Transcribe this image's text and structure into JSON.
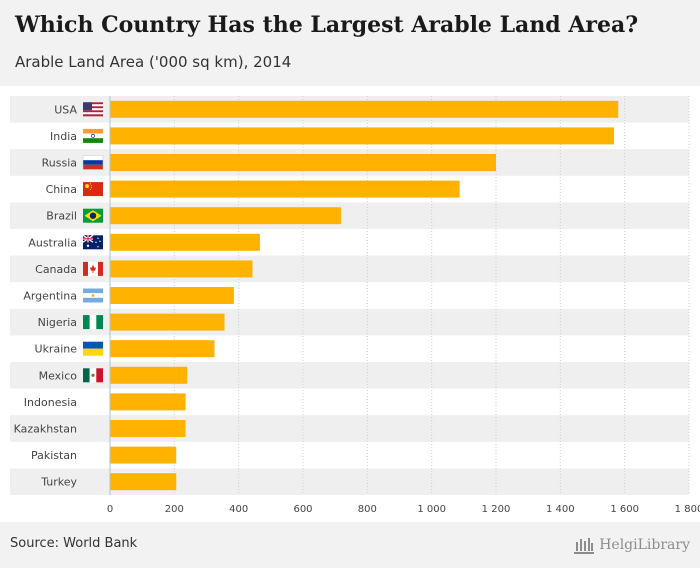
{
  "header": {
    "title": "Which Country Has the Largest Arable Land Area?",
    "subtitle": "Arable Land Area ('000 sq km), 2014"
  },
  "footer": {
    "source": "Source: World Bank",
    "logo_text": "HelgiLibrary"
  },
  "colors": {
    "bar": "#FFB300",
    "band": "#efefef",
    "zero_line": "#9cc8e6",
    "grid": "#d0d0d0"
  },
  "chart_data": {
    "type": "bar",
    "orientation": "horizontal",
    "title": "Which Country Has the Largest Arable Land Area?",
    "subtitle": "Arable Land Area ('000 sq km), 2014",
    "xlabel": "",
    "ylabel": "",
    "xlim": [
      0,
      1800
    ],
    "xticks": [
      0,
      200,
      400,
      600,
      800,
      1000,
      1200,
      1400,
      1600,
      1800
    ],
    "xtick_labels": [
      "0",
      "200",
      "400",
      "600",
      "800",
      "1 000",
      "1 200",
      "1 400",
      "1 600",
      "1 800"
    ],
    "categories": [
      "USA",
      "India",
      "Russia",
      "China",
      "Brazil",
      "Australia",
      "Canada",
      "Argentina",
      "Nigeria",
      "Ukraine",
      "Mexico",
      "Indonesia",
      "Kazakhstan",
      "Pakistan",
      "Turkey"
    ],
    "flags": [
      "us-flag-icon",
      "india-flag-icon",
      "russia-flag-icon",
      "china-flag-icon",
      "brazil-flag-icon",
      "australia-flag-icon",
      "canada-flag-icon",
      "argentina-flag-icon",
      "nigeria-flag-icon",
      "ukraine-flag-icon",
      "mexico-flag-icon",
      "",
      "",
      "",
      ""
    ],
    "values": [
      1580,
      1567,
      1200,
      1087,
      718,
      466,
      443,
      385,
      356,
      325,
      240,
      235,
      235,
      206,
      206
    ]
  }
}
